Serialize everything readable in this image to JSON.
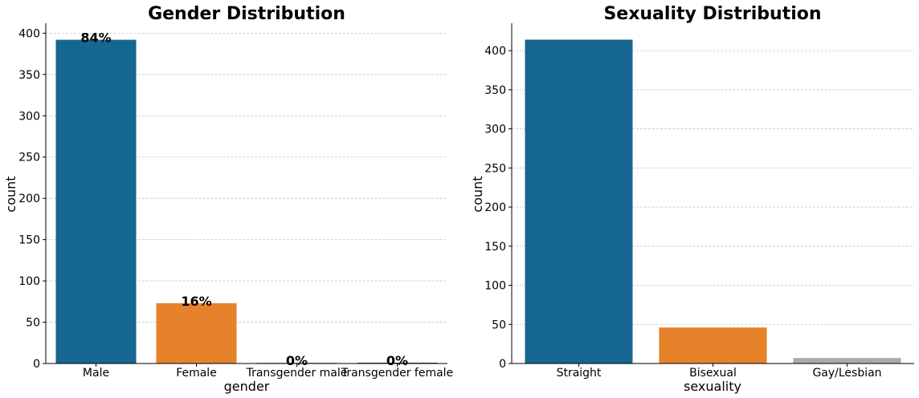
{
  "chart_data": [
    {
      "type": "bar",
      "title": "Gender Distribution",
      "xlabel": "gender",
      "ylabel": "count",
      "categories": [
        "Male",
        "Female",
        "Transgender male",
        "Transgender female"
      ],
      "values": [
        392,
        73,
        1,
        1
      ],
      "bar_labels": [
        "84%",
        "16%",
        "0%",
        "0%"
      ],
      "colors": [
        "#156690",
        "#e5822a",
        "#a9a9a9",
        "#4a4a4a"
      ],
      "ylim": [
        0,
        412
      ],
      "yticks": [
        0,
        50,
        100,
        150,
        200,
        250,
        300,
        350,
        400
      ],
      "grid": "y"
    },
    {
      "type": "bar",
      "title": "Sexuality Distribution",
      "xlabel": "sexuality",
      "ylabel": "count",
      "categories": [
        "Straight",
        "Bisexual",
        "Gay/Lesbian"
      ],
      "values": [
        414,
        46,
        7
      ],
      "colors": [
        "#156690",
        "#e5822a",
        "#a9a9a9"
      ],
      "ylim": [
        0,
        435
      ],
      "yticks": [
        0,
        50,
        100,
        150,
        200,
        250,
        300,
        350,
        400
      ],
      "grid": "y"
    }
  ]
}
